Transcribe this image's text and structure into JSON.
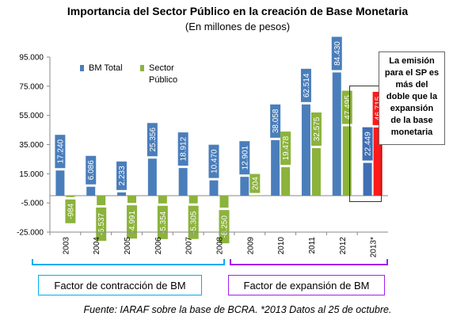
{
  "chart_data": {
    "type": "bar",
    "title": "Importancia del Sector Público en la creación de Base Monetaria",
    "subtitle": "(En millones de pesos)",
    "categories": [
      "2003",
      "2004",
      "2005",
      "2006",
      "2007",
      "2008",
      "2009",
      "2010",
      "2011",
      "2012",
      "2013*"
    ],
    "series": [
      {
        "name": "BM Total",
        "values": [
          17240,
          6086,
          2233,
          25356,
          18912,
          10470,
          12901,
          38058,
          62514,
          84430,
          22449
        ],
        "labels": [
          "17.240",
          "6.086",
          "2.233",
          "25.356",
          "18.912",
          "10.470",
          "12.901",
          "38.058",
          "62.514",
          "84.430",
          "22.449"
        ]
      },
      {
        "name": "Sector Público",
        "values": [
          -984,
          -6537,
          -4991,
          -5354,
          -5305,
          -8250,
          204,
          19478,
          32575,
          47495,
          46715
        ],
        "labels": [
          "-984",
          "-6.537",
          "-4.991",
          "-5.354",
          "-5.305",
          "-8.250",
          "204",
          "19.478",
          "32.575",
          "47.495",
          "46.715"
        ]
      }
    ],
    "yticks": [
      "95.000",
      "75.000",
      "55.000",
      "35.000",
      "15.000",
      "-5.000",
      "-25.000"
    ],
    "ylim": [
      -25000,
      95000
    ],
    "legend": "top-left",
    "colors": {
      "bm_total": "#4a7ebb",
      "sector_publico": "#8cb33c",
      "highlight_bm": "#3f6fb5",
      "highlight_sp": "#ff1a1a"
    }
  },
  "callout": {
    "lines": [
      "La emisión",
      "para el SP es",
      "más del",
      "doble que la",
      "expansión",
      "de la base",
      "monetaria"
    ]
  },
  "legend": {
    "bm_total": "BM Total",
    "sp_line1": "Sector",
    "sp_line2": "Público"
  },
  "factors": {
    "contraction": "Factor de contracción de BM",
    "expansion": "Factor de expansión de BM"
  },
  "source": "Fuente: IARAF sobre la base de BCRA. *2013 Datos al 25 de octubre."
}
